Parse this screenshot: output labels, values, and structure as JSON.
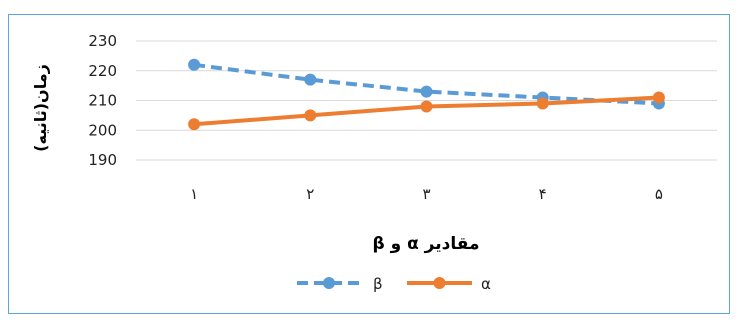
{
  "chart_data": {
    "type": "line",
    "categories": [
      "١",
      "٢",
      "٣",
      "۴",
      "۵"
    ],
    "ylabel": "زمان(ثانیه)",
    "xlabel": "مقادیر α و β",
    "ylim": [
      190,
      230
    ],
    "yticks": [
      "190",
      "200",
      "210",
      "220",
      "230"
    ],
    "grid": true,
    "legend_position": "bottom",
    "series": [
      {
        "name": "β",
        "values": [
          222,
          217,
          213,
          211,
          209
        ],
        "color": "#5b9bd5",
        "style": "dashed"
      },
      {
        "name": "α",
        "values": [
          202,
          205,
          208,
          209,
          211
        ],
        "color": "#ed7d31",
        "style": "solid"
      }
    ]
  }
}
